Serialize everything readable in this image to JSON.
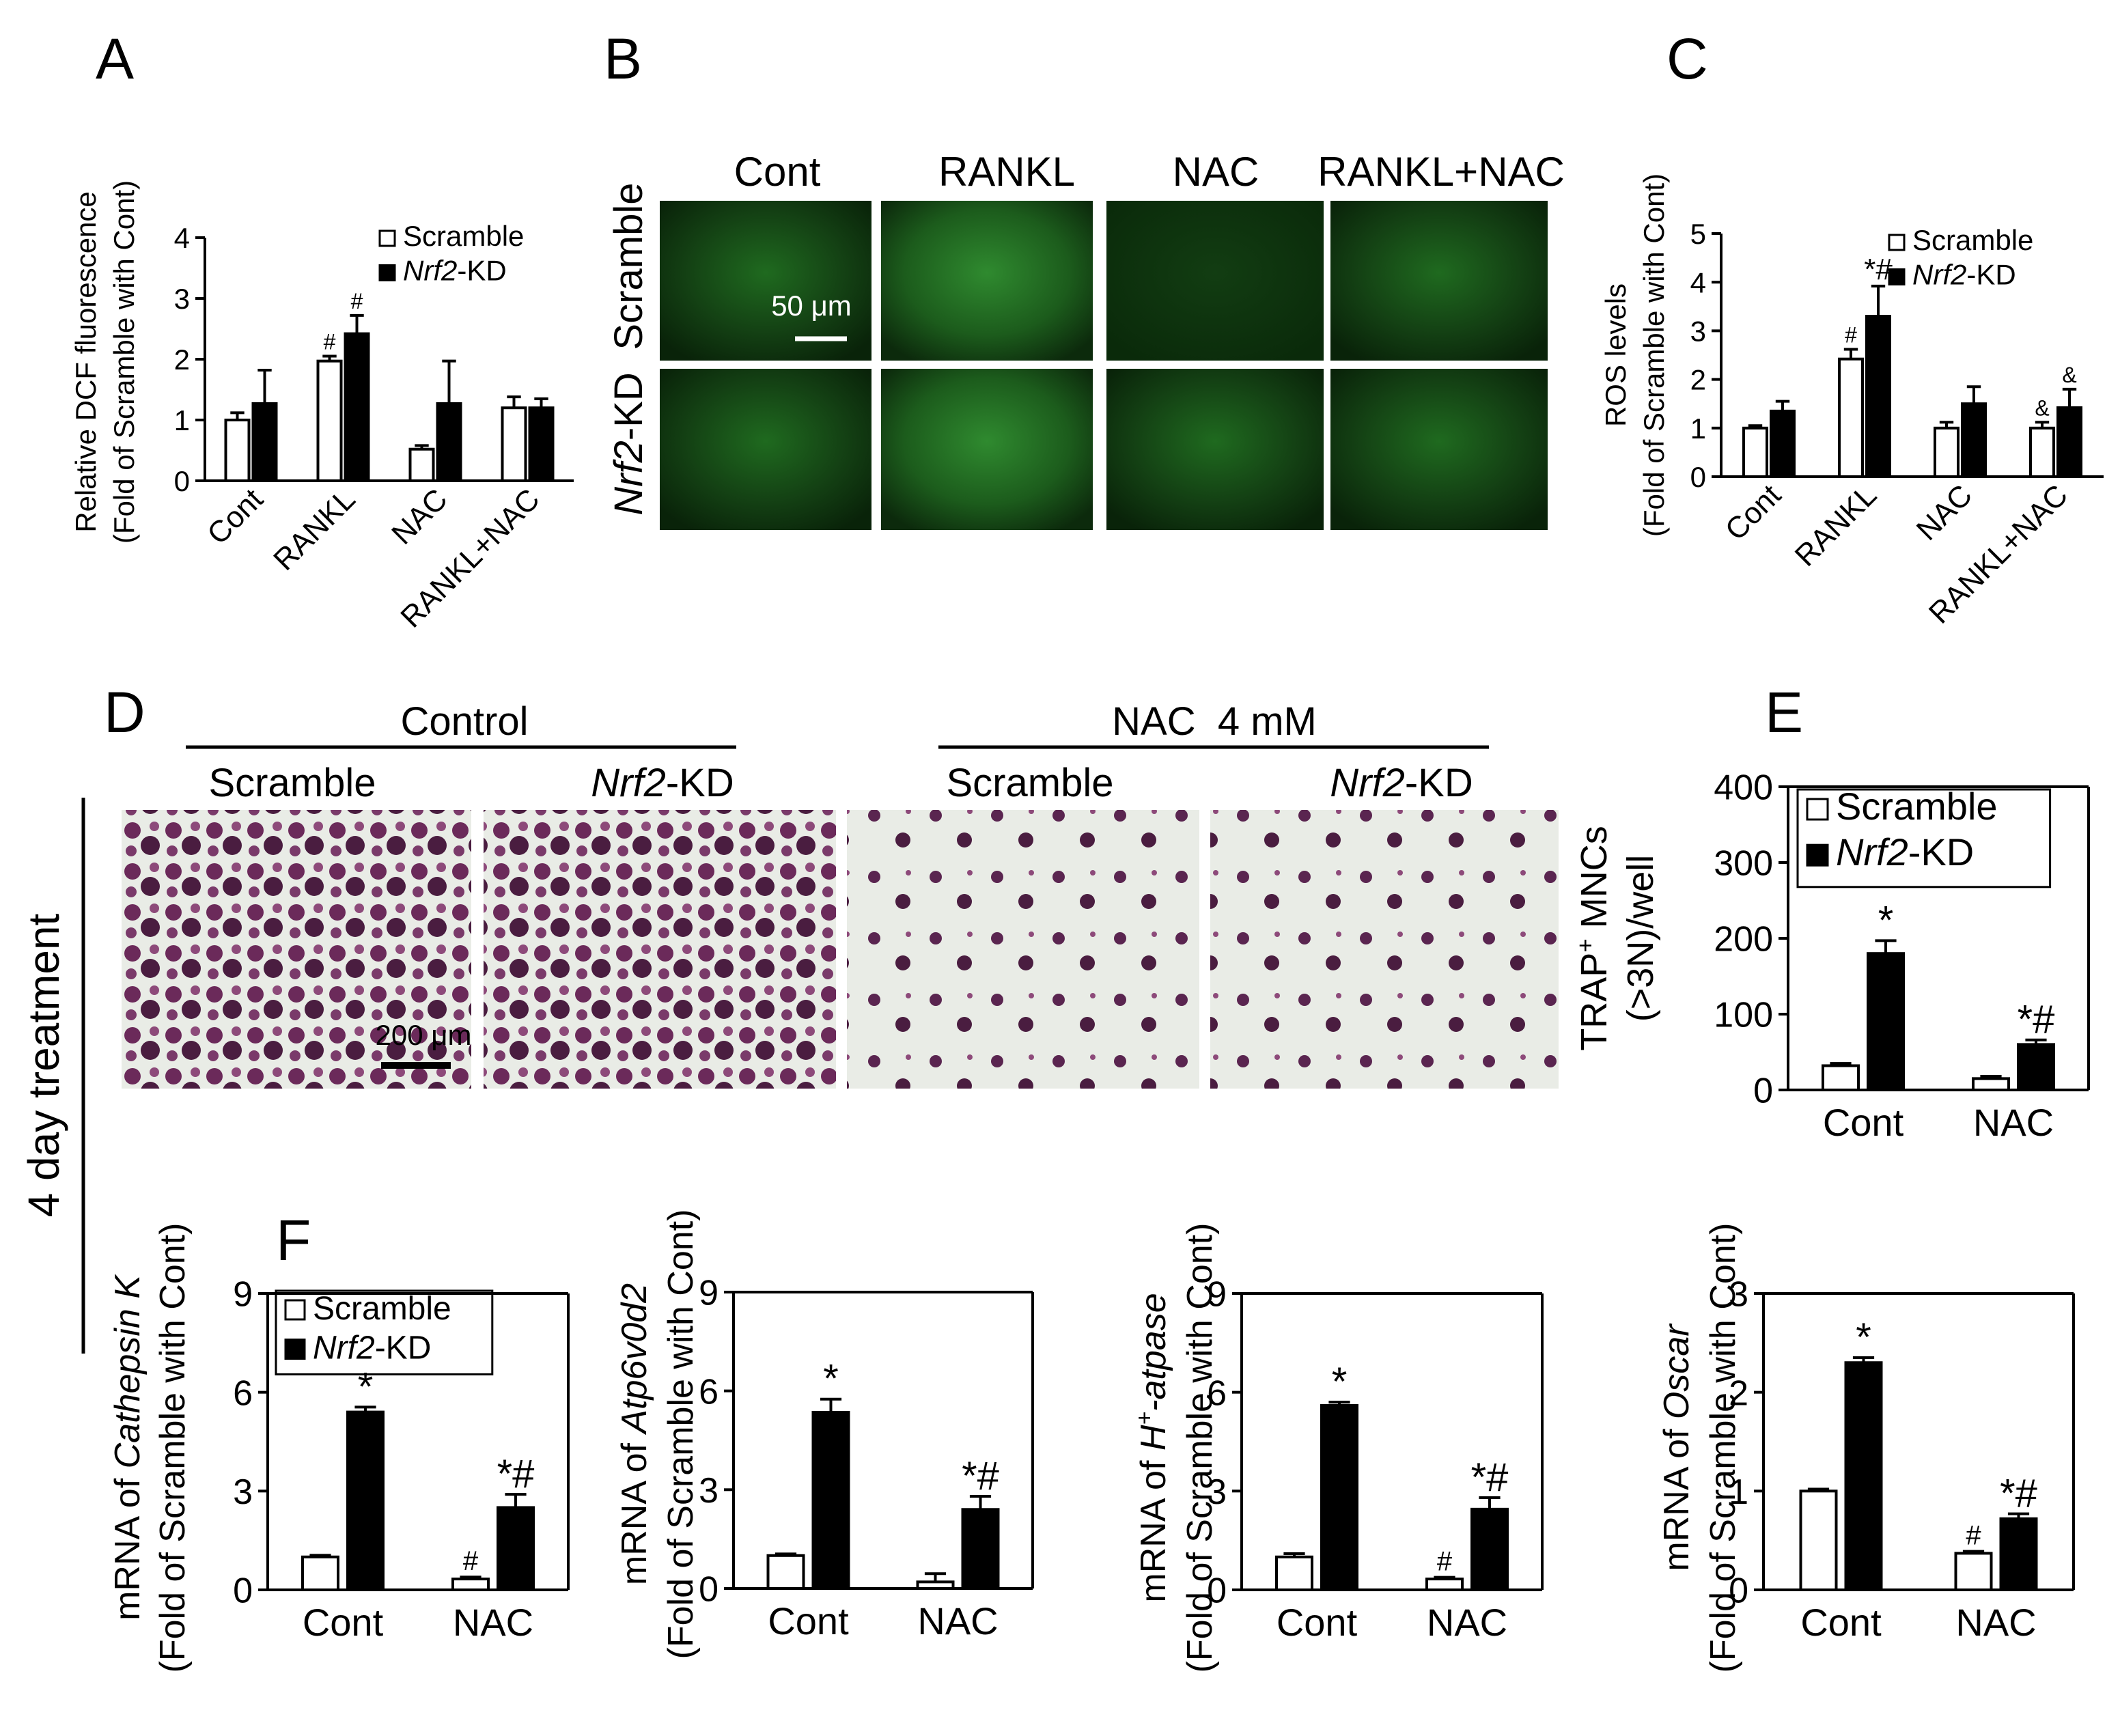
{
  "panels": {
    "A": {
      "letter": "A"
    },
    "B": {
      "letter": "B",
      "row_labels": [
        "Scramble",
        "Nrf2-KD"
      ],
      "col_labels": [
        "Cont",
        "RANKL",
        "NAC",
        "RANKL+NAC"
      ],
      "scale_bar": "50 μm",
      "image_color": "#1f6f1f"
    },
    "C": {
      "letter": "C"
    },
    "D": {
      "letter": "D",
      "group_labels": [
        "Control",
        "NAC  4 mM"
      ],
      "col_labels": [
        "Scramble",
        "Nrf2-KD",
        "Scramble",
        "Nrf2-KD"
      ],
      "side_label": "4 day treatment",
      "scale_bar": "200 μm",
      "stain_color": "#6b2a5a"
    },
    "E": {
      "letter": "E"
    },
    "F": {
      "letter": "F"
    }
  },
  "legend": {
    "scramble": "Scramble",
    "nrf2_prefix": "Nrf2",
    "nrf2_suffix": "-KD"
  },
  "chart_data": [
    {
      "id": "A",
      "type": "bar",
      "categories": [
        "Cont",
        "RANKL",
        "NAC",
        "RANKL+NAC"
      ],
      "series": [
        {
          "name": "Scramble",
          "values": [
            1.0,
            1.97,
            0.52,
            1.2
          ],
          "errors": [
            0.12,
            0.08,
            0.06,
            0.18
          ]
        },
        {
          "name": "Nrf2-KD",
          "values": [
            1.27,
            2.42,
            1.27,
            1.2
          ],
          "errors": [
            0.55,
            0.3,
            0.7,
            0.15
          ]
        }
      ],
      "annotations": [
        {
          "category": 1,
          "series": 0,
          "text": "#"
        },
        {
          "category": 1,
          "series": 1,
          "text": "#"
        }
      ],
      "ylabel": [
        "Relative DCF fluorescence",
        "(Fold of Scramble with Cont)"
      ],
      "ylim": [
        0,
        4
      ],
      "yticks": [
        0,
        1,
        2,
        3,
        4
      ]
    },
    {
      "id": "C",
      "type": "bar",
      "categories": [
        "Cont",
        "RANKL",
        "NAC",
        "RANKL+NAC"
      ],
      "series": [
        {
          "name": "Scramble",
          "values": [
            1.0,
            2.42,
            1.0,
            1.0
          ],
          "errors": [
            0.05,
            0.2,
            0.12,
            0.12
          ]
        },
        {
          "name": "Nrf2-KD",
          "values": [
            1.35,
            3.3,
            1.5,
            1.42
          ],
          "errors": [
            0.2,
            0.62,
            0.35,
            0.38
          ]
        }
      ],
      "annotations": [
        {
          "category": 1,
          "series": 0,
          "text": "#"
        },
        {
          "category": 1,
          "series": 1,
          "text": "*#"
        },
        {
          "category": 3,
          "series": 0,
          "text": "&"
        },
        {
          "category": 3,
          "series": 1,
          "text": "&"
        }
      ],
      "ylabel": [
        "ROS levels",
        "(Fold of Scramble with Cont)"
      ],
      "ylim": [
        0,
        5
      ],
      "yticks": [
        0,
        1,
        2,
        3,
        4,
        5
      ]
    },
    {
      "id": "E",
      "type": "bar",
      "categories": [
        "Cont",
        "NAC"
      ],
      "series": [
        {
          "name": "Scramble",
          "values": [
            32,
            15
          ],
          "errors": [
            3,
            3
          ]
        },
        {
          "name": "Nrf2-KD",
          "values": [
            180,
            60
          ],
          "errors": [
            17,
            6
          ]
        }
      ],
      "annotations": [
        {
          "category": 0,
          "series": 1,
          "text": "*"
        },
        {
          "category": 1,
          "series": 1,
          "text": "*#"
        }
      ],
      "ylabel": [
        "TRAP+ MNCs",
        "(>3N)/well"
      ],
      "ylim": [
        0,
        400
      ],
      "yticks": [
        0,
        100,
        200,
        300,
        400
      ]
    },
    {
      "id": "F1",
      "type": "bar",
      "categories": [
        "Cont",
        "NAC"
      ],
      "series": [
        {
          "name": "Scramble",
          "values": [
            1.0,
            0.33
          ],
          "errors": [
            0.05,
            0.06
          ]
        },
        {
          "name": "Nrf2-KD",
          "values": [
            5.4,
            2.5
          ],
          "errors": [
            0.15,
            0.4
          ]
        }
      ],
      "annotations": [
        {
          "category": 0,
          "series": 1,
          "text": "*"
        },
        {
          "category": 1,
          "series": 0,
          "text": "#"
        },
        {
          "category": 1,
          "series": 1,
          "text": "*#"
        }
      ],
      "ylabel": [
        "mRNA of Cathepsin K",
        "(Fold of Scramble with Cont)"
      ],
      "ylim": [
        0,
        9
      ],
      "yticks": [
        0,
        3,
        6,
        9
      ]
    },
    {
      "id": "F2",
      "type": "bar",
      "categories": [
        "Cont",
        "NAC"
      ],
      "series": [
        {
          "name": "Scramble",
          "values": [
            1.0,
            0.2
          ],
          "errors": [
            0.05,
            0.25
          ]
        },
        {
          "name": "Nrf2-KD",
          "values": [
            5.35,
            2.4
          ],
          "errors": [
            0.4,
            0.4
          ]
        }
      ],
      "annotations": [
        {
          "category": 0,
          "series": 1,
          "text": "*"
        },
        {
          "category": 1,
          "series": 1,
          "text": "*#"
        }
      ],
      "ylabel": [
        "mRNA of Atp6v0d2",
        "(Fold of Scramble with Cont)"
      ],
      "ylim": [
        0,
        9
      ],
      "yticks": [
        0,
        3,
        6,
        9
      ]
    },
    {
      "id": "F3",
      "type": "bar",
      "categories": [
        "Cont",
        "NAC"
      ],
      "series": [
        {
          "name": "Scramble",
          "values": [
            1.0,
            0.33
          ],
          "errors": [
            0.1,
            0.05
          ]
        },
        {
          "name": "Nrf2-KD",
          "values": [
            5.6,
            2.45
          ],
          "errors": [
            0.1,
            0.35
          ]
        }
      ],
      "annotations": [
        {
          "category": 0,
          "series": 1,
          "text": "*"
        },
        {
          "category": 1,
          "series": 0,
          "text": "#"
        },
        {
          "category": 1,
          "series": 1,
          "text": "*#"
        }
      ],
      "ylabel": [
        "mRNA of H+-atpase",
        "(Fold of Scramble with Cont)"
      ],
      "ylim": [
        0,
        9
      ],
      "yticks": [
        0,
        3,
        6,
        9
      ]
    },
    {
      "id": "F4",
      "type": "bar",
      "categories": [
        "Cont",
        "NAC"
      ],
      "series": [
        {
          "name": "Scramble",
          "values": [
            1.0,
            0.37
          ],
          "errors": [
            0.02,
            0.02
          ]
        },
        {
          "name": "Nrf2-KD",
          "values": [
            2.3,
            0.72
          ],
          "errors": [
            0.05,
            0.05
          ]
        }
      ],
      "annotations": [
        {
          "category": 0,
          "series": 1,
          "text": "*"
        },
        {
          "category": 1,
          "series": 0,
          "text": "#"
        },
        {
          "category": 1,
          "series": 1,
          "text": "*#"
        }
      ],
      "ylabel": [
        "mRNA of Oscar",
        "(Fold of Scramble with Cont)"
      ],
      "ylim": [
        0,
        3
      ],
      "yticks": [
        0,
        1,
        2,
        3
      ]
    }
  ]
}
